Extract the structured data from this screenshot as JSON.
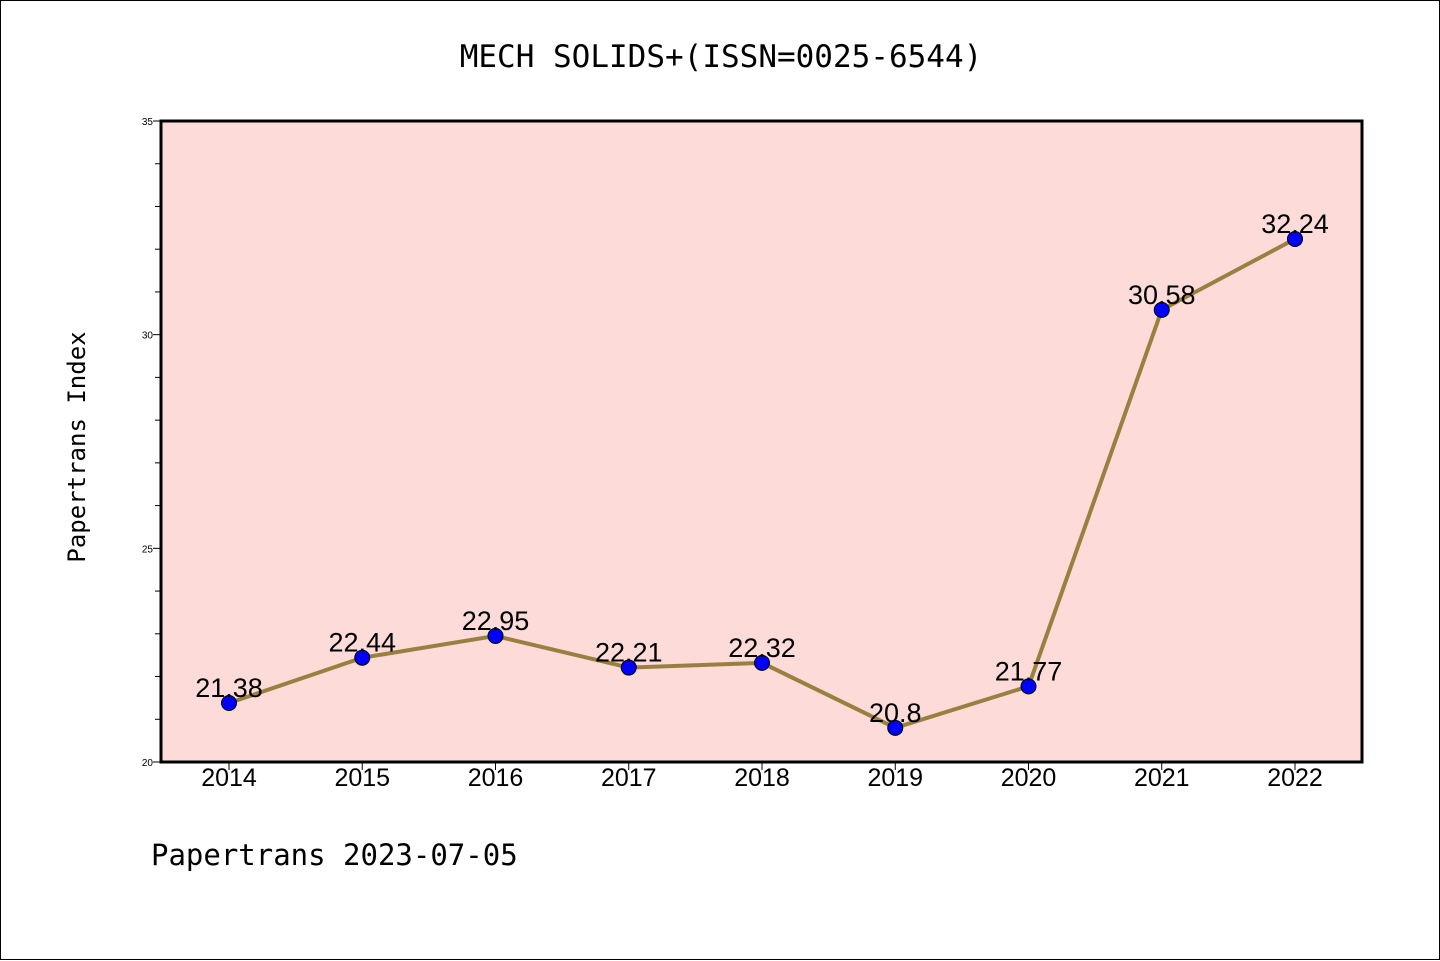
{
  "chart_data": {
    "type": "line",
    "title": "MECH SOLIDS+(ISSN=0025-6544)",
    "xlabel": "",
    "ylabel": "Papertrans Index",
    "x": [
      "2014",
      "2015",
      "2016",
      "2017",
      "2018",
      "2019",
      "2020",
      "2021",
      "2022"
    ],
    "series": [
      {
        "values": [
          21.38,
          22.44,
          22.95,
          22.21,
          22.32,
          20.8,
          21.77,
          30.58,
          32.24
        ],
        "labels": [
          "21.38",
          "22.44",
          "22.95",
          "22.21",
          "22.32",
          "20.8",
          "21.77",
          "30.58",
          "32.24"
        ]
      }
    ],
    "ylim": [
      20,
      35
    ],
    "yticks": [
      20,
      25,
      30,
      35
    ],
    "ytick_labels": [
      "20",
      "25",
      "30",
      "35"
    ],
    "grid": false,
    "footer": "Papertrans 2023-07-05",
    "colors": {
      "plot_background": "#fddbd8",
      "line": "#9a8040",
      "marker": "#0000ff"
    }
  }
}
